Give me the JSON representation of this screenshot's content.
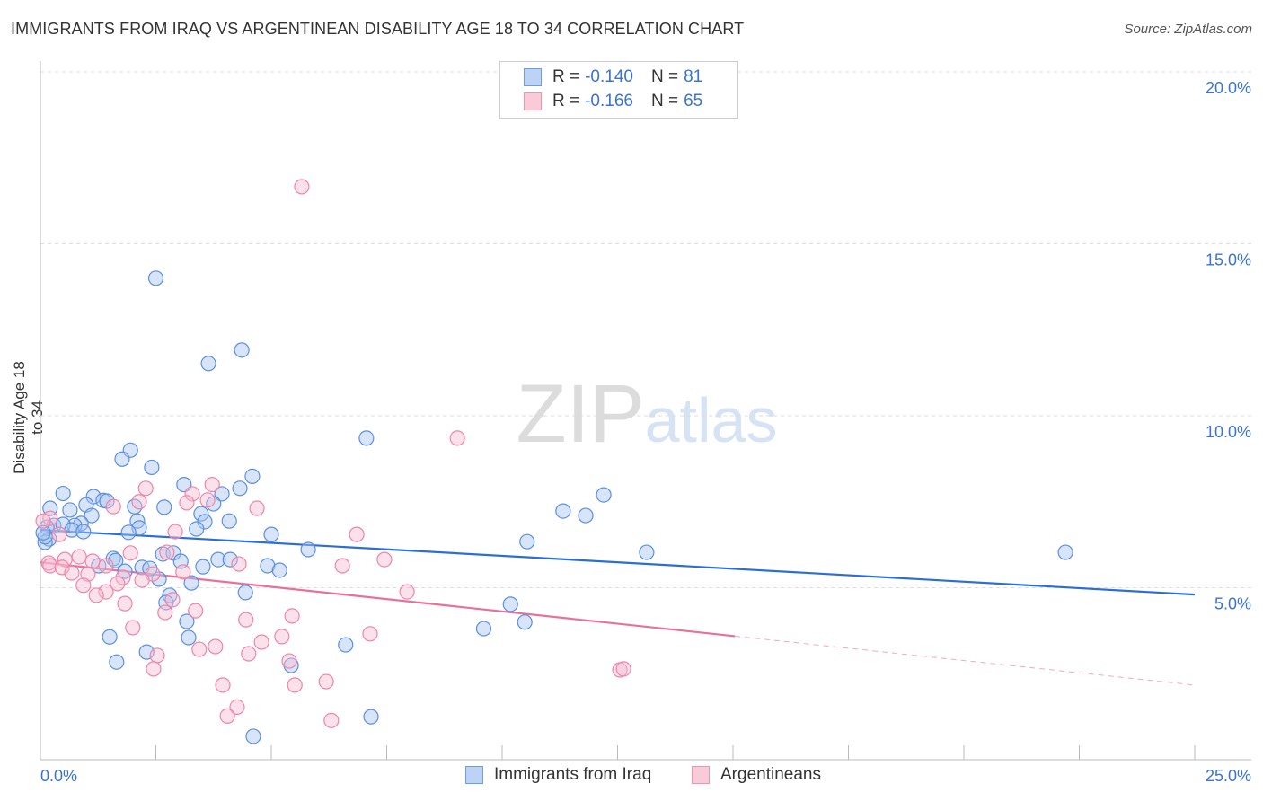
{
  "title": "IMMIGRANTS FROM IRAQ VS ARGENTINEAN DISABILITY AGE 18 TO 34 CORRELATION CHART",
  "source": "Source: ZipAtlas.com",
  "watermark": "ZIPatlas",
  "legend": {
    "rows": [
      {
        "r_label": "R =",
        "r": "-0.140",
        "n_label": "N =",
        "n": "81"
      },
      {
        "r_label": "R =",
        "r": "-0.166",
        "n_label": "N =",
        "n": "65"
      }
    ]
  },
  "chart_data": {
    "type": "scatter",
    "title": "IMMIGRANTS FROM IRAQ VS ARGENTINEAN DISABILITY AGE 18 TO 34 CORRELATION CHART",
    "xlabel": "",
    "ylabel": "Disability Age 18 to 34",
    "xlim": [
      0,
      25
    ],
    "ylim": [
      0,
      20
    ],
    "x_tick_labels": [
      "0.0%",
      "25.0%"
    ],
    "y_ticks": [
      5,
      10,
      15,
      20
    ],
    "y_tick_labels": [
      "5.0%",
      "10.0%",
      "15.0%",
      "20.0%"
    ],
    "grid": true,
    "colors": {
      "blue": "#5b8fe0",
      "blue_fill": "#a9c6f2",
      "pink": "#ee85a8",
      "pink_fill": "#f7bcd0",
      "blue_line": "#2b6fd6",
      "pink_line": "#e8709a",
      "value_text": "#3b73d1"
    },
    "series": [
      {
        "name": "Immigrants from Iraq",
        "color": "blue",
        "trend": {
          "x": [
            0,
            25
          ],
          "y": [
            6.68,
            4.8
          ],
          "solid_to": 25
        },
        "points": [
          [
            2.5,
            14.0
          ],
          [
            4.36,
            11.91
          ],
          [
            3.64,
            11.52
          ],
          [
            7.06,
            9.35
          ],
          [
            1.95,
            9.0
          ],
          [
            1.77,
            8.74
          ],
          [
            2.41,
            8.5
          ],
          [
            4.59,
            8.24
          ],
          [
            3.11,
            8.0
          ],
          [
            12.2,
            7.7
          ],
          [
            0.49,
            7.74
          ],
          [
            4.32,
            7.89
          ],
          [
            3.93,
            7.73
          ],
          [
            1.15,
            7.65
          ],
          [
            1.36,
            7.54
          ],
          [
            1.44,
            7.52
          ],
          [
            0.99,
            7.41
          ],
          [
            0.21,
            7.31
          ],
          [
            0.64,
            7.26
          ],
          [
            2.04,
            7.36
          ],
          [
            2.68,
            7.34
          ],
          [
            3.75,
            7.44
          ],
          [
            3.48,
            7.15
          ],
          [
            11.32,
            7.23
          ],
          [
            11.81,
            7.1
          ],
          [
            1.11,
            7.1
          ],
          [
            2.1,
            6.94
          ],
          [
            3.56,
            6.92
          ],
          [
            4.09,
            6.94
          ],
          [
            3.38,
            6.71
          ],
          [
            0.29,
            6.81
          ],
          [
            0.88,
            6.87
          ],
          [
            0.74,
            6.81
          ],
          [
            0.49,
            6.84
          ],
          [
            0.14,
            6.76
          ],
          [
            0.68,
            6.68
          ],
          [
            0.93,
            6.63
          ],
          [
            2.14,
            6.74
          ],
          [
            1.91,
            6.61
          ],
          [
            5.0,
            6.55
          ],
          [
            10.54,
            6.34
          ],
          [
            13.13,
            6.03
          ],
          [
            22.2,
            6.03
          ],
          [
            5.8,
            6.11
          ],
          [
            0.19,
            6.42
          ],
          [
            0.1,
            6.32
          ],
          [
            2.65,
            5.98
          ],
          [
            2.88,
            6.01
          ],
          [
            1.58,
            5.85
          ],
          [
            1.63,
            5.79
          ],
          [
            1.26,
            5.64
          ],
          [
            3.04,
            5.77
          ],
          [
            3.85,
            5.82
          ],
          [
            4.11,
            5.82
          ],
          [
            3.52,
            5.61
          ],
          [
            4.92,
            5.64
          ],
          [
            5.18,
            5.51
          ],
          [
            2.2,
            5.59
          ],
          [
            1.83,
            5.48
          ],
          [
            2.37,
            5.56
          ],
          [
            2.57,
            5.25
          ],
          [
            3.27,
            5.14
          ],
          [
            4.44,
            4.86
          ],
          [
            2.8,
            4.78
          ],
          [
            2.72,
            4.57
          ],
          [
            10.18,
            4.52
          ],
          [
            10.49,
            4.0
          ],
          [
            3.17,
            4.02
          ],
          [
            9.6,
            3.81
          ],
          [
            1.5,
            3.57
          ],
          [
            3.21,
            3.55
          ],
          [
            6.61,
            3.34
          ],
          [
            2.3,
            3.13
          ],
          [
            1.65,
            2.84
          ],
          [
            5.43,
            2.74
          ],
          [
            7.16,
            1.25
          ],
          [
            4.61,
            0.68
          ],
          [
            0.1,
            6.48
          ],
          [
            0.06,
            6.6
          ]
        ]
      },
      {
        "name": "Argentineans",
        "color": "pink",
        "trend": {
          "x": [
            0,
            25
          ],
          "y": [
            5.74,
            2.17
          ],
          "solid_to": 15.04
        },
        "points": [
          [
            5.66,
            16.66
          ],
          [
            9.03,
            9.35
          ],
          [
            3.72,
            8.0
          ],
          [
            2.28,
            7.89
          ],
          [
            2.14,
            7.5
          ],
          [
            3.29,
            7.73
          ],
          [
            3.62,
            7.55
          ],
          [
            3.17,
            7.47
          ],
          [
            4.69,
            7.31
          ],
          [
            1.58,
            7.36
          ],
          [
            0.21,
            7.02
          ],
          [
            0.06,
            6.94
          ],
          [
            2.92,
            6.63
          ],
          [
            6.85,
            6.55
          ],
          [
            0.41,
            6.55
          ],
          [
            2.74,
            6.03
          ],
          [
            1.95,
            6.01
          ],
          [
            0.84,
            5.9
          ],
          [
            0.53,
            5.82
          ],
          [
            1.13,
            5.77
          ],
          [
            0.18,
            5.72
          ],
          [
            0.21,
            5.64
          ],
          [
            0.47,
            5.59
          ],
          [
            1.42,
            5.64
          ],
          [
            7.45,
            5.82
          ],
          [
            6.54,
            5.64
          ],
          [
            4.3,
            5.69
          ],
          [
            0.68,
            5.43
          ],
          [
            1.03,
            5.4
          ],
          [
            2.43,
            5.4
          ],
          [
            3.09,
            5.46
          ],
          [
            1.79,
            5.3
          ],
          [
            2.2,
            5.22
          ],
          [
            0.93,
            5.07
          ],
          [
            1.67,
            5.12
          ],
          [
            1.42,
            4.88
          ],
          [
            1.21,
            4.78
          ],
          [
            7.94,
            4.88
          ],
          [
            2.86,
            4.65
          ],
          [
            1.83,
            4.54
          ],
          [
            3.36,
            4.33
          ],
          [
            2.7,
            4.28
          ],
          [
            5.45,
            4.18
          ],
          [
            4.45,
            4.07
          ],
          [
            2.0,
            3.84
          ],
          [
            7.14,
            3.66
          ],
          [
            5.23,
            3.58
          ],
          [
            4.79,
            3.42
          ],
          [
            3.79,
            3.29
          ],
          [
            3.44,
            3.21
          ],
          [
            4.51,
            3.08
          ],
          [
            2.53,
            3.03
          ],
          [
            5.39,
            2.87
          ],
          [
            2.45,
            2.64
          ],
          [
            12.55,
            2.61
          ],
          [
            12.63,
            2.64
          ],
          [
            6.19,
            2.27
          ],
          [
            3.95,
            2.17
          ],
          [
            5.51,
            2.17
          ],
          [
            4.26,
            1.53
          ],
          [
            4.05,
            1.27
          ],
          [
            6.3,
            1.14
          ]
        ]
      }
    ]
  }
}
